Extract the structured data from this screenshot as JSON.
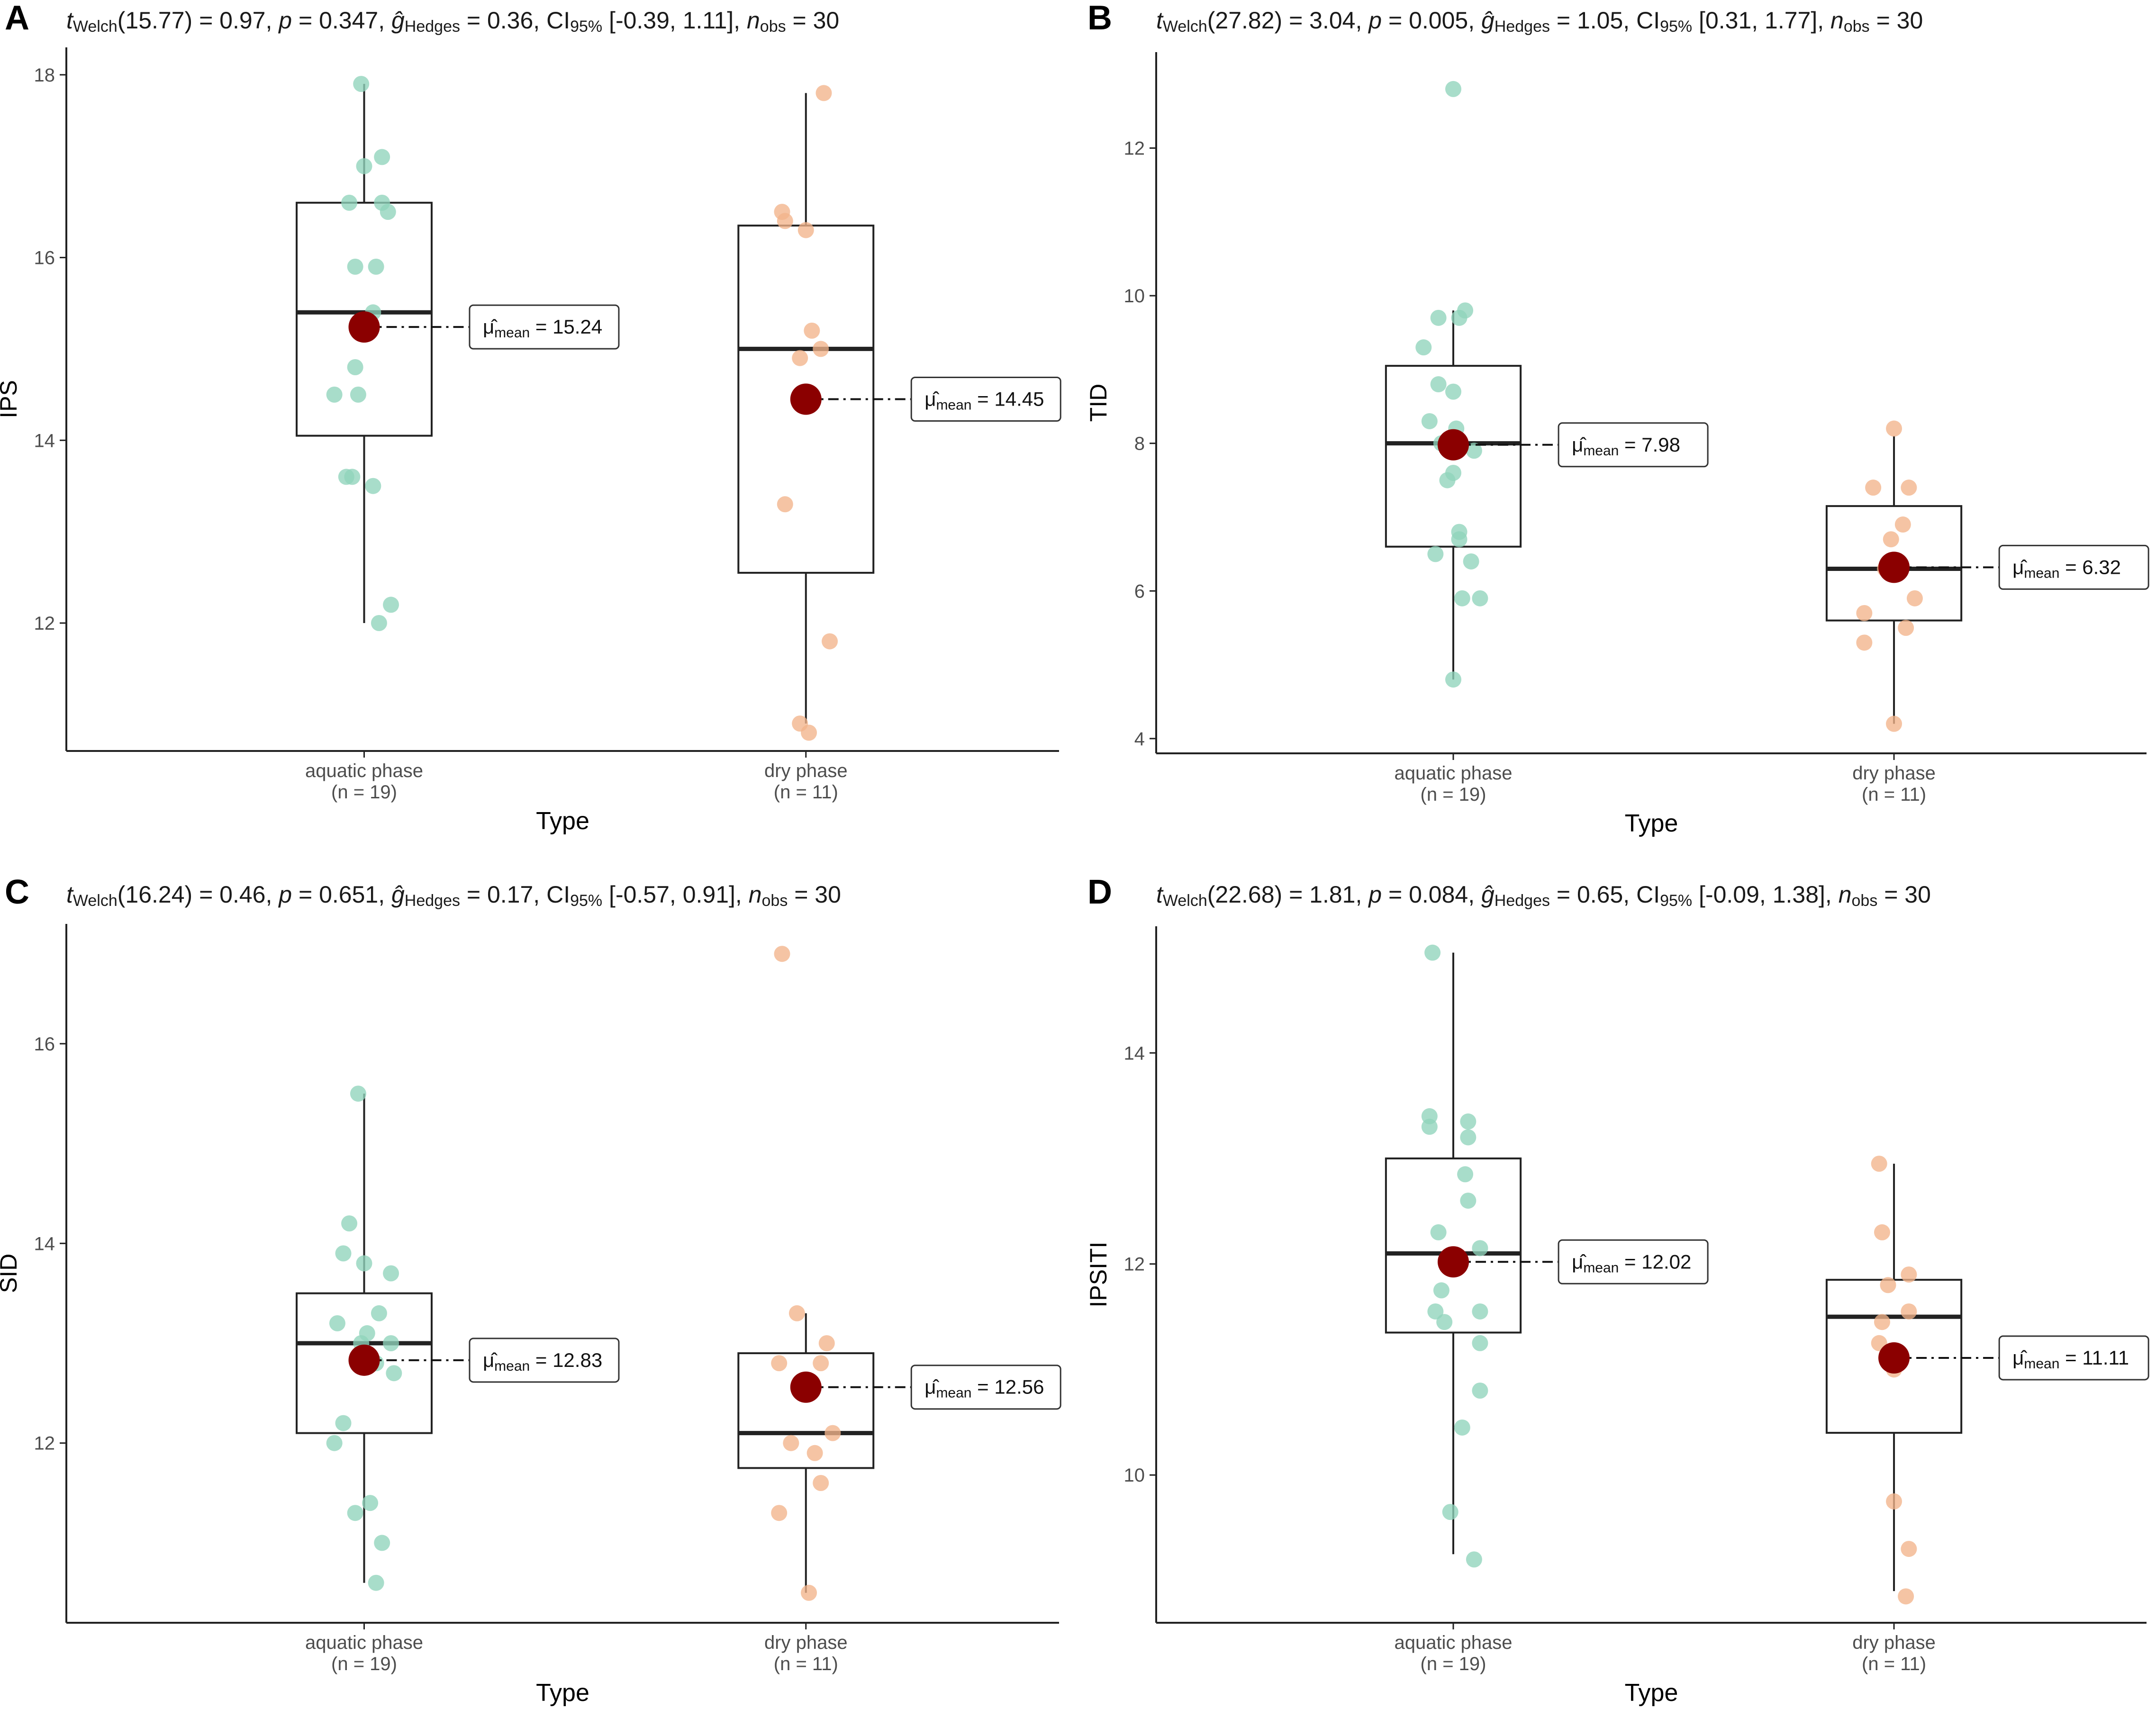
{
  "chart_data": [
    {
      "panel": "A",
      "type": "box",
      "stat": {
        "df": "15.77",
        "t": "0.97",
        "p": "0.347",
        "g": "0.36",
        "ci": "[-0.39, 1.11]",
        "n": "30"
      },
      "ylabel": "IPS",
      "xlabel": "Type",
      "ylim": [
        10.6,
        18.3
      ],
      "yticks": [
        12,
        14,
        16,
        18
      ],
      "groups": [
        {
          "name": "aquatic phase",
          "n": "(n = 19)",
          "color": "#8fd3bb",
          "q1": 14.05,
          "median": 15.4,
          "q3": 16.6,
          "whisker_low": 12.0,
          "whisker_high": 17.9,
          "mean": 15.24,
          "mean_label": "15.24",
          "points": [
            [
              -0.01,
              17.9
            ],
            [
              0.0,
              17.0
            ],
            [
              0.06,
              17.1
            ],
            [
              -0.05,
              16.6
            ],
            [
              0.06,
              16.6
            ],
            [
              0.08,
              16.5
            ],
            [
              -0.03,
              15.9
            ],
            [
              0.04,
              15.9
            ],
            [
              0.03,
              15.4
            ],
            [
              -0.03,
              14.8
            ],
            [
              -0.1,
              14.5
            ],
            [
              -0.02,
              14.5
            ],
            [
              -0.06,
              13.6
            ],
            [
              -0.04,
              13.6
            ],
            [
              0.03,
              13.5
            ],
            [
              0.09,
              12.2
            ],
            [
              0.05,
              12.0
            ]
          ]
        },
        {
          "name": "dry phase",
          "n": "(n = 11)",
          "color": "#f2b48a",
          "q1": 12.55,
          "median": 15.0,
          "q3": 16.35,
          "whisker_low": 10.9,
          "whisker_high": 17.8,
          "mean": 14.45,
          "mean_label": "14.45",
          "points": [
            [
              0.06,
              17.8
            ],
            [
              -0.08,
              16.5
            ],
            [
              -0.07,
              16.4
            ],
            [
              0.0,
              16.3
            ],
            [
              0.02,
              15.2
            ],
            [
              0.05,
              15.0
            ],
            [
              -0.02,
              14.9
            ],
            [
              -0.07,
              13.3
            ],
            [
              0.08,
              11.8
            ],
            [
              -0.02,
              10.9
            ],
            [
              0.01,
              10.8
            ]
          ]
        }
      ]
    },
    {
      "panel": "B",
      "type": "box",
      "stat": {
        "df": "27.82",
        "t": "3.04",
        "p": "0.005",
        "g": "1.05",
        "ci": "[0.31, 1.77]",
        "n": "30"
      },
      "ylabel": "TID",
      "xlabel": "Type",
      "ylim": [
        3.8,
        13.3
      ],
      "yticks": [
        4,
        6,
        8,
        10,
        12
      ],
      "groups": [
        {
          "name": "aquatic phase",
          "n": "(n = 19)",
          "color": "#8fd3bb",
          "q1": 6.6,
          "median": 8.0,
          "q3": 9.05,
          "whisker_low": 4.8,
          "whisker_high": 9.8,
          "mean": 7.98,
          "mean_label": "7.98",
          "points": [
            [
              0.0,
              12.8
            ],
            [
              0.04,
              9.8
            ],
            [
              -0.05,
              9.7
            ],
            [
              0.02,
              9.7
            ],
            [
              -0.1,
              9.3
            ],
            [
              -0.05,
              8.8
            ],
            [
              0.0,
              8.7
            ],
            [
              -0.08,
              8.3
            ],
            [
              0.01,
              8.2
            ],
            [
              -0.04,
              8.0
            ],
            [
              0.07,
              7.9
            ],
            [
              0.0,
              7.6
            ],
            [
              -0.02,
              7.5
            ],
            [
              0.02,
              6.8
            ],
            [
              0.02,
              6.7
            ],
            [
              -0.06,
              6.5
            ],
            [
              0.06,
              6.4
            ],
            [
              0.09,
              5.9
            ],
            [
              0.03,
              5.9
            ],
            [
              0.0,
              4.8
            ]
          ]
        },
        {
          "name": "dry phase",
          "n": "(n = 11)",
          "color": "#f2b48a",
          "q1": 5.6,
          "median": 6.3,
          "q3": 7.15,
          "whisker_low": 4.2,
          "whisker_high": 8.1,
          "mean": 6.32,
          "mean_label": "6.32",
          "points": [
            [
              0.0,
              8.2
            ],
            [
              -0.07,
              7.4
            ],
            [
              0.05,
              7.4
            ],
            [
              0.03,
              6.9
            ],
            [
              -0.01,
              6.7
            ],
            [
              -0.03,
              6.3
            ],
            [
              0.07,
              5.9
            ],
            [
              -0.1,
              5.7
            ],
            [
              0.04,
              5.5
            ],
            [
              -0.1,
              5.3
            ],
            [
              0.0,
              4.2
            ]
          ]
        }
      ]
    },
    {
      "panel": "C",
      "type": "box",
      "stat": {
        "df": "16.24",
        "t": "0.46",
        "p": "0.651",
        "g": "0.17",
        "ci": "[-0.57, 0.91]",
        "n": "30"
      },
      "ylabel": "SID",
      "xlabel": "Type",
      "ylim": [
        10.2,
        17.2
      ],
      "yticks": [
        12,
        14,
        16
      ],
      "groups": [
        {
          "name": "aquatic phase",
          "n": "(n = 19)",
          "color": "#8fd3bb",
          "q1": 12.1,
          "median": 13.0,
          "q3": 13.5,
          "whisker_low": 10.6,
          "whisker_high": 15.5,
          "mean": 12.83,
          "mean_label": "12.83",
          "points": [
            [
              -0.02,
              15.5
            ],
            [
              -0.05,
              14.2
            ],
            [
              -0.07,
              13.9
            ],
            [
              0.0,
              13.8
            ],
            [
              0.09,
              13.7
            ],
            [
              0.05,
              13.3
            ],
            [
              -0.09,
              13.2
            ],
            [
              0.01,
              13.1
            ],
            [
              -0.01,
              13.0
            ],
            [
              0.09,
              13.0
            ],
            [
              0.04,
              12.8
            ],
            [
              0.1,
              12.7
            ],
            [
              -0.07,
              12.2
            ],
            [
              -0.1,
              12.0
            ],
            [
              0.02,
              11.4
            ],
            [
              -0.03,
              11.3
            ],
            [
              0.06,
              11.0
            ],
            [
              0.04,
              10.6
            ]
          ]
        },
        {
          "name": "dry phase",
          "n": "(n = 11)",
          "color": "#f2b48a",
          "q1": 11.75,
          "median": 12.1,
          "q3": 12.9,
          "whisker_low": 10.5,
          "whisker_high": 13.3,
          "mean": 12.56,
          "mean_label": "12.56",
          "points": [
            [
              -0.08,
              16.9
            ],
            [
              -0.03,
              13.3
            ],
            [
              0.07,
              13.0
            ],
            [
              -0.09,
              12.8
            ],
            [
              0.05,
              12.8
            ],
            [
              0.09,
              12.1
            ],
            [
              -0.05,
              12.0
            ],
            [
              0.03,
              11.9
            ],
            [
              0.05,
              11.6
            ],
            [
              -0.09,
              11.3
            ],
            [
              0.01,
              10.5
            ]
          ]
        }
      ]
    },
    {
      "panel": "D",
      "type": "box",
      "stat": {
        "df": "22.68",
        "t": "1.81",
        "p": "0.084",
        "g": "0.65",
        "ci": "[-0.09, 1.38]",
        "n": "30"
      },
      "ylabel": "IPSITI",
      "xlabel": "Type",
      "ylim": [
        8.6,
        15.2
      ],
      "yticks": [
        10,
        12,
        14
      ],
      "groups": [
        {
          "name": "aquatic phase",
          "n": "(n = 19)",
          "color": "#8fd3bb",
          "q1": 11.35,
          "median": 12.1,
          "q3": 13.0,
          "whisker_low": 9.25,
          "whisker_high": 14.95,
          "mean": 12.02,
          "mean_label": "12.02",
          "points": [
            [
              -0.07,
              14.95
            ],
            [
              -0.08,
              13.4
            ],
            [
              -0.08,
              13.3
            ],
            [
              0.05,
              13.35
            ],
            [
              0.05,
              13.2
            ],
            [
              0.04,
              12.85
            ],
            [
              0.05,
              12.6
            ],
            [
              -0.05,
              12.3
            ],
            [
              0.09,
              12.15
            ],
            [
              -0.01,
              12.0
            ],
            [
              -0.04,
              11.75
            ],
            [
              0.09,
              11.55
            ],
            [
              -0.06,
              11.55
            ],
            [
              -0.03,
              11.45
            ],
            [
              0.09,
              11.25
            ],
            [
              0.09,
              10.8
            ],
            [
              0.03,
              10.45
            ],
            [
              -0.01,
              9.65
            ],
            [
              0.07,
              9.2
            ]
          ]
        },
        {
          "name": "dry phase",
          "n": "(n = 11)",
          "color": "#f2b48a",
          "q1": 10.4,
          "median": 11.5,
          "q3": 11.85,
          "whisker_low": 8.9,
          "whisker_high": 12.95,
          "mean": 11.11,
          "mean_label": "11.11",
          "points": [
            [
              -0.05,
              12.95
            ],
            [
              -0.04,
              12.3
            ],
            [
              -0.02,
              11.8
            ],
            [
              0.05,
              11.9
            ],
            [
              0.05,
              11.55
            ],
            [
              -0.04,
              11.45
            ],
            [
              -0.05,
              11.25
            ],
            [
              0.0,
              11.0
            ],
            [
              0.0,
              9.75
            ],
            [
              0.05,
              9.3
            ],
            [
              0.04,
              8.85
            ]
          ]
        }
      ]
    }
  ]
}
